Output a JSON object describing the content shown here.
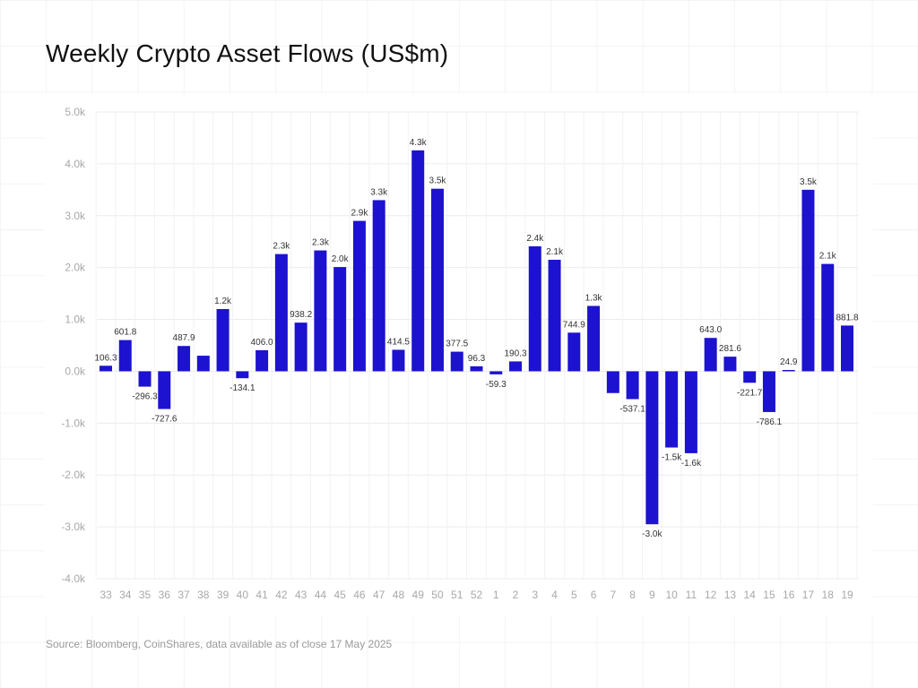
{
  "title": "Weekly Crypto Asset Flows (US$m)",
  "source": "Source: Bloomberg, CoinShares, data available as of close 17 May 2025",
  "colors": {
    "bar": "#1c12d0",
    "grid": "#ececec",
    "tick": "#a8a8a8",
    "label": "#333333"
  },
  "chart_data": {
    "type": "bar",
    "title": "Weekly Crypto Asset Flows (US$m)",
    "xlabel": "",
    "ylabel": "",
    "ylim": [
      -4000,
      5000
    ],
    "yticks": [
      5000,
      4000,
      3000,
      2000,
      1000,
      0,
      -1000,
      -2000,
      -3000,
      -4000
    ],
    "ytick_labels": [
      "5.0k",
      "4.0k",
      "3.0k",
      "2.0k",
      "1.0k",
      "0.0k",
      "-1.0k",
      "-2.0k",
      "-3.0k",
      "-4.0k"
    ],
    "grid": true,
    "categories": [
      "33",
      "34",
      "35",
      "36",
      "37",
      "38",
      "39",
      "40",
      "41",
      "42",
      "43",
      "44",
      "45",
      "46",
      "47",
      "48",
      "49",
      "50",
      "51",
      "52",
      "1",
      "2",
      "3",
      "4",
      "5",
      "6",
      "7",
      "8",
      "9",
      "10",
      "11",
      "12",
      "13",
      "14",
      "15",
      "16",
      "17",
      "18",
      "19"
    ],
    "values": [
      106.3,
      601.8,
      -296.3,
      -727.6,
      487.9,
      300,
      1200,
      -134.1,
      406.0,
      2260,
      938.2,
      2330,
      2010,
      2900,
      3300,
      414.5,
      4260,
      3520,
      377.5,
      96.3,
      -59.3,
      190.3,
      2410,
      2150,
      744.9,
      1260,
      -420,
      -537.1,
      -2950,
      -1470,
      -1580,
      643.0,
      281.6,
      -221.7,
      -786.1,
      24.9,
      3500,
      2070,
      881.8
    ],
    "data_labels": [
      "106.3",
      "601.8",
      "-296.3",
      "-727.6",
      "487.9",
      "",
      "1.2k",
      "-134.1",
      "406.0",
      "2.3k",
      "938.2",
      "2.3k",
      "2.0k",
      "2.9k",
      "3.3k",
      "414.5",
      "4.3k",
      "3.5k",
      "377.5",
      "96.3",
      "-59.3",
      "190.3",
      "2.4k",
      "2.1k",
      "744.9",
      "1.3k",
      "",
      "-537.1",
      "-3.0k",
      "-1.5k",
      "-1.6k",
      "643.0",
      "281.6",
      "-221.7",
      "-786.1",
      "24.9",
      "3.5k",
      "2.1k",
      "881.8"
    ]
  }
}
